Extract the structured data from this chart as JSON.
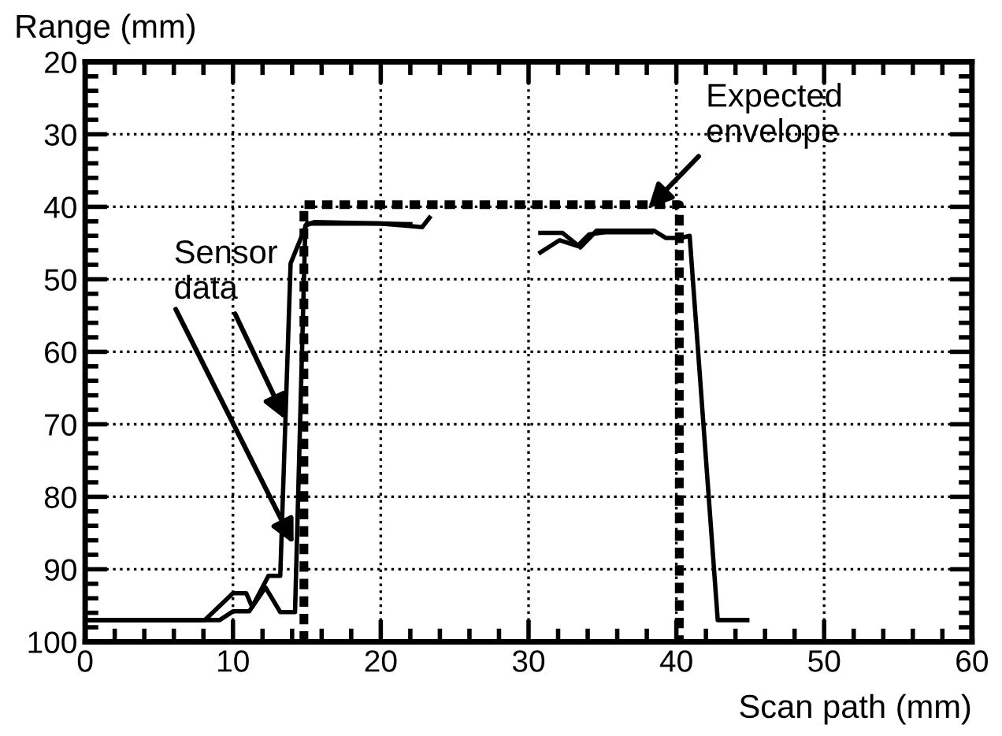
{
  "chart_data": {
    "type": "line",
    "xlabel": "Scan path (mm)",
    "ylabel": "Range (mm)",
    "xlim": [
      0,
      60
    ],
    "xticks": [
      0,
      10,
      20,
      30,
      40,
      50,
      60
    ],
    "ylim": [
      100,
      20
    ],
    "yticks": [
      20,
      30,
      40,
      50,
      60,
      70,
      80,
      90,
      100
    ],
    "grid": true,
    "marker": "none",
    "line_style": "solid",
    "series": [
      {
        "color": "#000000",
        "x": [
          0,
          8.1,
          10,
          10.9,
          11.3,
          12.4,
          13.2,
          13.9,
          15,
          20,
          22.8,
          23.3
        ],
        "values": [
          97,
          97,
          93.3,
          93.3,
          95.2,
          90.9,
          90.9,
          47.8,
          42.3,
          42.3,
          42.8,
          41.5
        ]
      },
      {
        "color": "#000000",
        "x": [
          0,
          9.1,
          10,
          11.1,
          12.2,
          13.2,
          14.2,
          14.9,
          15.5,
          22
        ],
        "values": [
          97,
          97,
          95.8,
          95.8,
          92.5,
          95.9,
          95.9,
          42.6,
          42.1,
          42.4
        ]
      },
      {
        "color": "#000000",
        "x": [
          30.8,
          32.1,
          33.3,
          34.1,
          35.2,
          38.3
        ],
        "values": [
          46.3,
          44.6,
          45.4,
          43.8,
          43.5,
          43.5
        ]
      },
      {
        "color": "#000000",
        "x": [
          30.8,
          32.3,
          33.5,
          34.6,
          38.5,
          39.3,
          40.3,
          40.9,
          42.8,
          44.8
        ],
        "values": [
          43.6,
          43.6,
          45.6,
          43.3,
          43.3,
          44.3,
          44.3,
          44,
          97,
          97
        ]
      },
      {
        "color": "#000000",
        "line_style": "dashed",
        "x": [
          14.8,
          14.8,
          40.2,
          40.2
        ],
        "values": [
          100,
          39.7,
          39.7,
          100
        ]
      }
    ],
    "annotations": [
      {
        "text": "Sensor\ndata",
        "x": 14.1,
        "y": 86.5
      },
      {
        "text": "Expected\nenvelope",
        "x": 38.1,
        "y": 40.2
      }
    ]
  }
}
